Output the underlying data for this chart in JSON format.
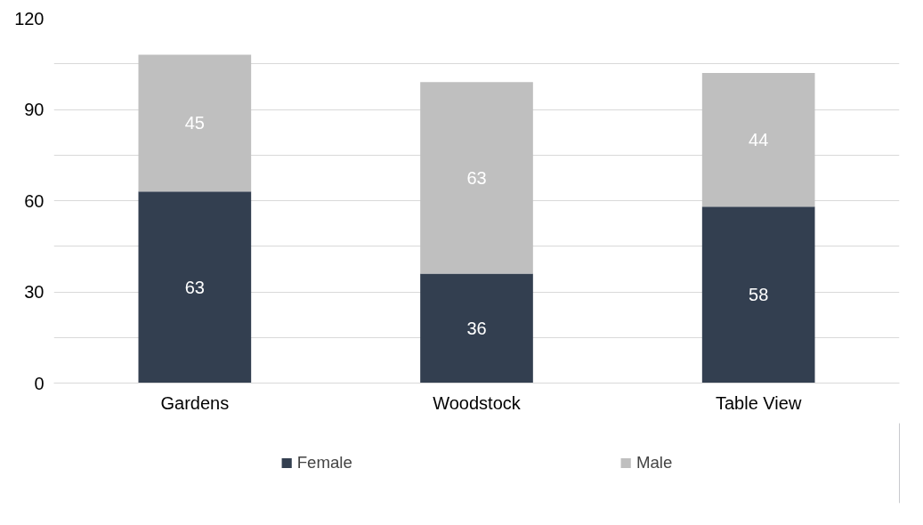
{
  "chart_data": {
    "type": "bar",
    "stacked": true,
    "categories": [
      "Gardens",
      "Woodstock",
      "Table View"
    ],
    "series": [
      {
        "name": "Female",
        "color": "#333f50",
        "values": [
          63,
          36,
          58
        ]
      },
      {
        "name": "Male",
        "color": "#bfbfbf",
        "values": [
          45,
          63,
          44
        ]
      }
    ],
    "ylim": [
      0,
      120
    ],
    "yticks": [
      0,
      {
        "value": 15,
        "label": null
      },
      30,
      {
        "value": 45,
        "label": null
      },
      60,
      {
        "value": 75,
        "label": null
      },
      90,
      {
        "value": 105,
        "label": null
      },
      120
    ],
    "grid": "y",
    "legend": "bottom",
    "data_labels": true
  }
}
